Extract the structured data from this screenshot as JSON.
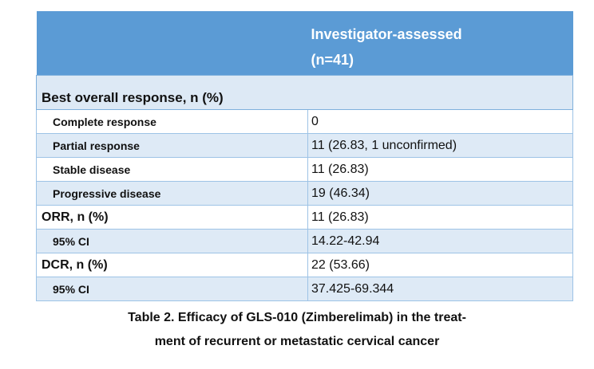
{
  "table": {
    "header_line1": "Investigator-assessed",
    "header_line2": "(n=41)",
    "section_title": "Best overall response, n (%)",
    "rows": [
      {
        "label": "Complete response",
        "value": "0"
      },
      {
        "label": "Partial response",
        "value": "11 (26.83, 1 unconfirmed)"
      },
      {
        "label": "Stable disease",
        "value": "11 (26.83)"
      },
      {
        "label": "Progressive disease",
        "value": "19 (46.34)"
      },
      {
        "label": "ORR, n (%)",
        "value": "11 (26.83)"
      },
      {
        "label": "95% CI",
        "value": "14.22-42.94"
      },
      {
        "label": "DCR, n (%)",
        "value": "22 (53.66)"
      },
      {
        "label": "95% CI",
        "value": "37.425-69.344"
      }
    ],
    "colors": {
      "header_bg": "#5b9bd5",
      "band_bg": "#deeaf6",
      "border": "#9dc3e6"
    }
  },
  "caption": {
    "line1": "Table 2. Efficacy of GLS-010 (Zimberelimab)  in the treat-",
    "line2": "ment of recurrent or metastatic cervical cancer"
  }
}
